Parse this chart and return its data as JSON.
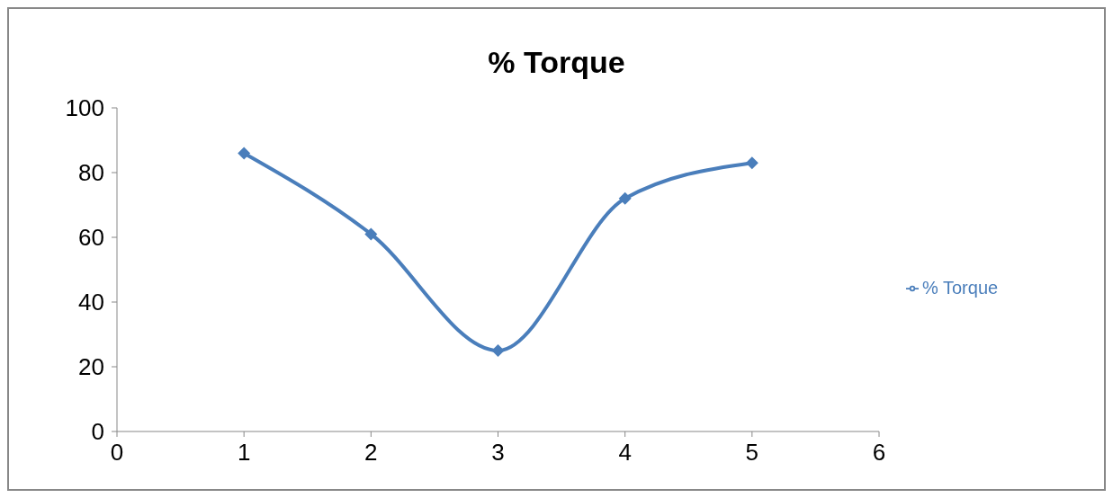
{
  "chart_data": {
    "type": "line",
    "title": "% Torque",
    "x": [
      1,
      2,
      3,
      4,
      5
    ],
    "series": [
      {
        "name": "% Torque",
        "color": "#4a7ebb",
        "values": [
          86,
          61,
          25,
          72,
          83
        ]
      }
    ],
    "xlim": [
      0,
      6
    ],
    "xticks": [
      0,
      1,
      2,
      3,
      4,
      5,
      6
    ],
    "ylim": [
      0,
      100
    ],
    "yticks": [
      0,
      20,
      40,
      60,
      80,
      100
    ],
    "grid": false,
    "legend": "right",
    "marker": "diamond",
    "line_style": "solid"
  }
}
